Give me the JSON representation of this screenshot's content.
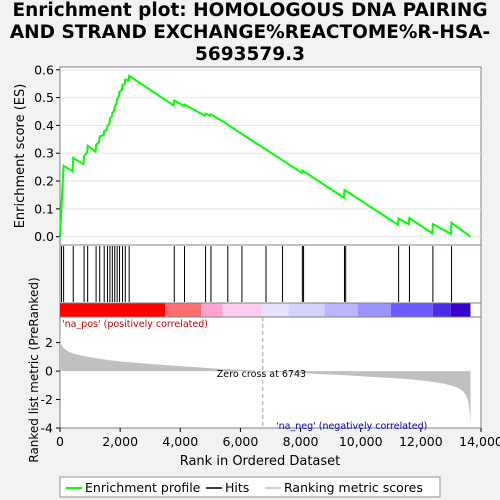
{
  "title_lines": [
    "Enrichment plot: HOMOLOGOUS DNA PAIRING",
    "AND STRAND EXCHANGE%REACTOME%R-HSA-",
    "5693579.3"
  ],
  "colors": {
    "es_line": "#00ff00",
    "hits": "#000000",
    "metric_fill": "#c0c0c0",
    "pos_label": "#cc0000",
    "neg_label": "#0000cc",
    "background": "#f2f2f2",
    "plot_bg": "#ffffff"
  },
  "chart_data": [
    {
      "type": "line",
      "name": "enrichment-profile",
      "ylabel": "Enrichment score (ES)",
      "xlim": [
        0,
        14000
      ],
      "ylim": [
        -0.03,
        0.61
      ],
      "yticks": [
        0.0,
        0.1,
        0.2,
        0.3,
        0.4,
        0.5,
        0.6
      ],
      "ytick_labels": [
        "0.0",
        "0.1",
        "0.2",
        "0.3",
        "0.4",
        "0.5",
        "0.6"
      ],
      "x": [
        0,
        50,
        120,
        420,
        440,
        780,
        800,
        900,
        920,
        1180,
        1200,
        1300,
        1320,
        1450,
        1470,
        1560,
        1580,
        1640,
        1660,
        1720,
        1740,
        1800,
        1820,
        1880,
        1900,
        1960,
        1980,
        2060,
        2080,
        2150,
        2170,
        2280,
        2300,
        3780,
        3800,
        4120,
        4140,
        4820,
        4840,
        5000,
        5020,
        5560,
        5580,
        8040,
        8060,
        9440,
        9460,
        11240,
        11260,
        11600,
        11620,
        12380,
        12400,
        13000,
        13020,
        13650
      ],
      "y": [
        0.0,
        0.11,
        0.255,
        0.235,
        0.283,
        0.26,
        0.29,
        0.303,
        0.327,
        0.306,
        0.33,
        0.34,
        0.36,
        0.365,
        0.38,
        0.385,
        0.398,
        0.405,
        0.425,
        0.43,
        0.445,
        0.452,
        0.468,
        0.478,
        0.494,
        0.505,
        0.522,
        0.528,
        0.545,
        0.55,
        0.565,
        0.562,
        0.578,
        0.472,
        0.49,
        0.47,
        0.475,
        0.435,
        0.442,
        0.435,
        0.44,
        0.405,
        0.402,
        0.23,
        0.238,
        0.14,
        0.168,
        0.043,
        0.065,
        0.045,
        0.067,
        0.012,
        0.045,
        0.01,
        0.05,
        0.0
      ]
    },
    {
      "type": "hits",
      "name": "hits",
      "x": [
        50,
        120,
        440,
        800,
        920,
        1200,
        1320,
        1470,
        1580,
        1660,
        1740,
        1820,
        1900,
        1980,
        2080,
        2170,
        2300,
        3800,
        4140,
        4840,
        5020,
        5580,
        6050,
        6850,
        7400,
        8060,
        8100,
        9460,
        9500,
        11260,
        11620,
        12400,
        13020
      ]
    },
    {
      "type": "heatmap",
      "name": "rank-colorbar",
      "segments": [
        {
          "x0": 0,
          "x1": 3500,
          "color": "#ff0000"
        },
        {
          "x0": 3500,
          "x1": 4700,
          "color": "#ff6f6f"
        },
        {
          "x0": 4700,
          "x1": 5400,
          "color": "#ffa3d0"
        },
        {
          "x0": 5400,
          "x1": 6700,
          "color": "#ffccee"
        },
        {
          "x0": 6700,
          "x1": 7600,
          "color": "#e6e2ff"
        },
        {
          "x0": 7600,
          "x1": 8800,
          "color": "#d6d2ff"
        },
        {
          "x0": 8800,
          "x1": 9900,
          "color": "#bdb6ff"
        },
        {
          "x0": 9900,
          "x1": 11000,
          "color": "#9d95ff"
        },
        {
          "x0": 11000,
          "x1": 12400,
          "color": "#6d5cff"
        },
        {
          "x0": 12400,
          "x1": 13000,
          "color": "#4a2ee6"
        },
        {
          "x0": 13000,
          "x1": 13650,
          "color": "#3800cc"
        }
      ]
    },
    {
      "type": "area",
      "name": "ranked-list-metric",
      "ylabel": "Ranked list metric (PreRanked)",
      "xlabel": "Rank in Ordered Dataset",
      "xlim": [
        0,
        14000
      ],
      "ylim": [
        -4,
        3.8
      ],
      "yticks": [
        -4,
        -2,
        0,
        2
      ],
      "ytick_labels": [
        "-4",
        "-2",
        "0",
        "2"
      ],
      "xticks": [
        0,
        2000,
        4000,
        6000,
        8000,
        10000,
        12000,
        14000
      ],
      "xtick_labels": [
        "0",
        "2,000",
        "4,000",
        "6,000",
        "8,000",
        "10,000",
        "12,000",
        "14,000"
      ],
      "x": [
        0,
        10,
        50,
        150,
        300,
        500,
        800,
        1200,
        1600,
        2000,
        3000,
        4000,
        5000,
        6000,
        6743,
        7500,
        8500,
        9500,
        10500,
        11500,
        12200,
        12800,
        13200,
        13400,
        13500,
        13580,
        13620,
        13650
      ],
      "y": [
        2.85,
        2.2,
        1.8,
        1.55,
        1.35,
        1.2,
        1.05,
        0.9,
        0.78,
        0.68,
        0.5,
        0.35,
        0.2,
        0.08,
        0.0,
        -0.08,
        -0.2,
        -0.3,
        -0.42,
        -0.55,
        -0.7,
        -0.9,
        -1.15,
        -1.4,
        -1.7,
        -2.2,
        -2.9,
        -3.75
      ],
      "zero_cross_label": "Zero cross at 6743",
      "zero_cross_x": 6743,
      "pos_label": "'na_pos' (positively correlated)",
      "neg_label": "'na_neg' (negatively correlated)"
    }
  ],
  "legend": {
    "items": [
      {
        "label": "Enrichment profile",
        "color": "#00ff00"
      },
      {
        "label": "Hits",
        "color": "#000000"
      },
      {
        "label": "Ranking metric scores",
        "color": "#c0c0c0"
      }
    ]
  }
}
